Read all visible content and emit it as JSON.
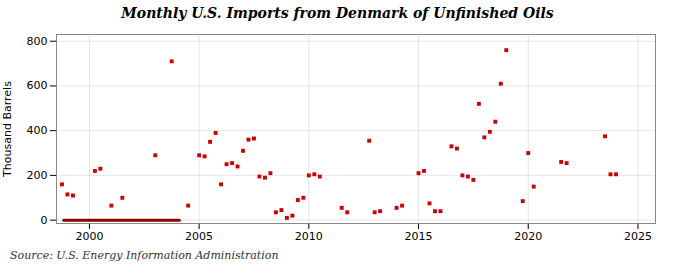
{
  "chart_data": {
    "type": "scatter",
    "title": "Monthly U.S. Imports from Denmark of Unfinished Oils",
    "ylabel": "Thousand Barrels",
    "source": "Source: U.S. Energy Information Administration",
    "xlim": [
      1998.5,
      2025.8
    ],
    "ylim": [
      -15,
      830
    ],
    "xticks": [
      2000,
      2005,
      2010,
      2015,
      2020,
      2025
    ],
    "yticks": [
      0,
      200,
      400,
      600,
      800
    ],
    "grid": true,
    "series": [
      {
        "type": "scatter",
        "color": "#cc0000",
        "marker": "square",
        "x": [
          1998.75,
          1999.0,
          1999.25,
          2000.25,
          2000.5,
          2001.0,
          2001.5,
          2003.0,
          2003.75,
          2004.5,
          2005.0,
          2005.25,
          2005.5,
          2005.75,
          2006.0,
          2006.25,
          2006.5,
          2006.75,
          2007.0,
          2007.25,
          2007.5,
          2007.75,
          2008.0,
          2008.25,
          2008.5,
          2008.75,
          2009.0,
          2009.25,
          2009.5,
          2009.75,
          2010.0,
          2010.25,
          2010.5,
          2011.5,
          2011.75,
          2012.75,
          2013.0,
          2013.25,
          2014.0,
          2014.25,
          2015.0,
          2015.25,
          2015.5,
          2015.75,
          2016.0,
          2016.5,
          2016.75,
          2017.0,
          2017.25,
          2017.5,
          2017.75,
          2018.0,
          2018.25,
          2018.5,
          2018.75,
          2019.0,
          2019.75,
          2020.0,
          2020.25,
          2021.5,
          2021.75,
          2023.5,
          2023.75,
          2024.0
        ],
        "values": [
          160,
          115,
          110,
          220,
          230,
          65,
          100,
          290,
          710,
          65,
          290,
          285,
          350,
          390,
          160,
          250,
          255,
          240,
          310,
          360,
          365,
          195,
          190,
          210,
          35,
          45,
          10,
          20,
          90,
          100,
          200,
          205,
          195,
          55,
          35,
          355,
          35,
          40,
          55,
          65,
          210,
          220,
          75,
          40,
          40,
          330,
          320,
          200,
          195,
          180,
          520,
          370,
          395,
          440,
          610,
          760,
          85,
          300,
          150,
          260,
          255,
          375,
          205,
          205
        ]
      },
      {
        "type": "line",
        "color": "#8b0000",
        "line_style": "solid",
        "x": [
          1998.83,
          2004.1
        ],
        "values": [
          0,
          0
        ]
      }
    ]
  }
}
